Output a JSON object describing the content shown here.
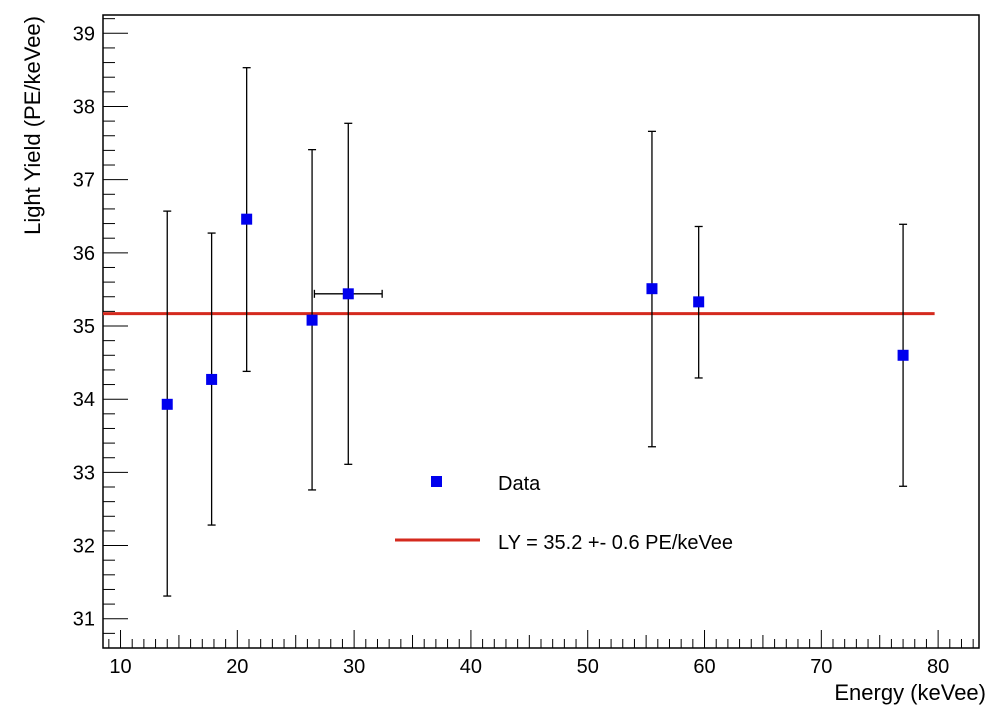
{
  "chart_data": {
    "type": "scatter",
    "title": "",
    "xlabel": "Energy (keVee)",
    "ylabel": "Light Yield (PE/keVee)",
    "xlim": [
      8.5,
      83.5
    ],
    "ylim": [
      30.6,
      39.25
    ],
    "x_ticks": [
      10,
      20,
      30,
      40,
      50,
      60,
      70,
      80
    ],
    "y_ticks": [
      31,
      32,
      33,
      34,
      35,
      36,
      37,
      38,
      39
    ],
    "grid": false,
    "legend_position": "center",
    "series": [
      {
        "name": "Data",
        "color": "#0000ee",
        "marker": "square",
        "points": [
          {
            "x": 14.0,
            "y": 33.93,
            "y_err_low": 2.62,
            "y_err_high": 2.64,
            "x_err": 0
          },
          {
            "x": 17.8,
            "y": 34.27,
            "y_err_low": 1.99,
            "y_err_high": 2.0,
            "x_err": 0
          },
          {
            "x": 20.8,
            "y": 36.46,
            "y_err_low": 2.08,
            "y_err_high": 2.07,
            "x_err": 0
          },
          {
            "x": 26.4,
            "y": 35.08,
            "y_err_low": 2.32,
            "y_err_high": 2.33,
            "x_err": 0
          },
          {
            "x": 29.5,
            "y": 35.44,
            "y_err_low": 2.33,
            "y_err_high": 2.33,
            "x_err": 2.9
          },
          {
            "x": 55.5,
            "y": 35.51,
            "y_err_low": 2.16,
            "y_err_high": 2.15,
            "x_err": 0
          },
          {
            "x": 59.5,
            "y": 35.33,
            "y_err_low": 1.04,
            "y_err_high": 1.03,
            "x_err": 0
          },
          {
            "x": 77.0,
            "y": 34.6,
            "y_err_low": 1.79,
            "y_err_high": 1.79,
            "x_err": 0
          }
        ]
      },
      {
        "name": "LY = 35.2 +- 0.6 PE/keVee",
        "type": "line",
        "color": "#d42a1e",
        "x": [
          8.5,
          79.7
        ],
        "values": [
          35.17,
          35.17
        ]
      }
    ]
  }
}
